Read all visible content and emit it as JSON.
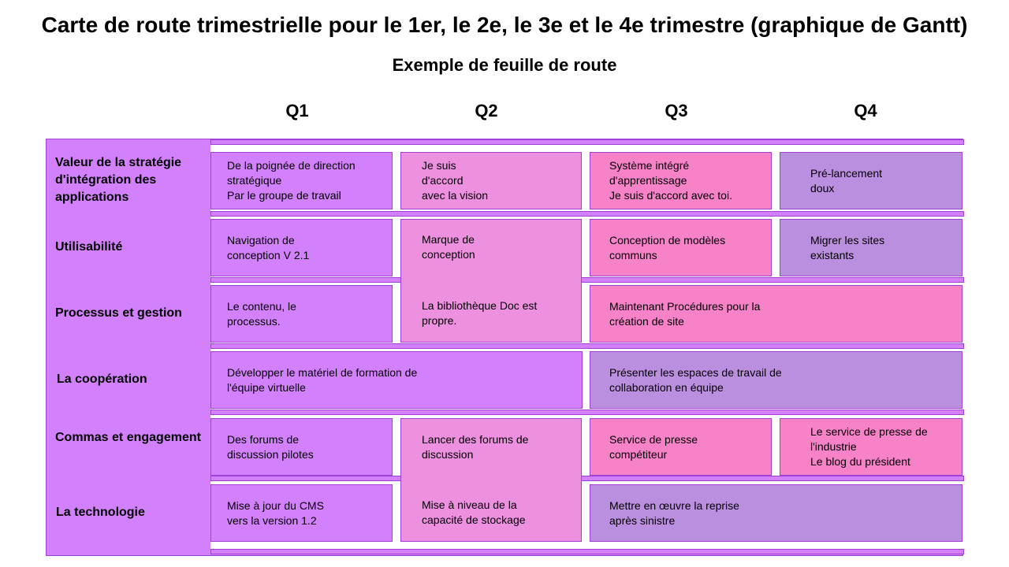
{
  "title": "Carte de route trimestrielle pour le 1er, le 2e, le 3e et le 4e trimestre (graphique de Gantt)",
  "subtitle": "Exemple de feuille de route",
  "colors": {
    "panel": "#d280fb",
    "panel_border": "#a040d8",
    "light_pink": "#ec90df",
    "hot_pink": "#f782c8",
    "lavender": "#bb8fe0"
  },
  "quarters": [
    "Q1",
    "Q2",
    "Q3",
    "Q4"
  ],
  "rows": [
    "Valeur de la stratégie d'intégration des applications",
    "Utilisabilité",
    "Processus et gestion",
    "La coopération",
    "Commas et engagement",
    "La technologie"
  ],
  "tasks": [
    {
      "text": "De la poignée de direction\nstratégique\nPar le groupe de travail",
      "color": "#d280fb"
    },
    {
      "text": "Je suis\nd'accord\navec la vision",
      "color": "#ec90df"
    },
    {
      "text": "Système intégré\nd'apprentissage\n Je suis d'accord avec toi.",
      "color": "#f782c8"
    },
    {
      "text": "Pré-lancement\ndoux",
      "color": "#bb8fe0"
    },
    {
      "text": "Navigation de\nconception V 2.1",
      "color": "#d280fb"
    },
    {
      "text": "Marque de\nconception",
      "color": "#ec90df"
    },
    {
      "text": "Conception de modèles\ncommuns",
      "color": "#f782c8"
    },
    {
      "text": "Migrer les sites\nexistants",
      "color": "#bb8fe0"
    },
    {
      "text": "Le contenu, le\nprocessus.",
      "color": "#d280fb"
    },
    {
      "text": "La bibliothèque Doc est\npropre.",
      "color": "#ec90df"
    },
    {
      "text": "Maintenant Procédures pour la\ncréation de site",
      "color": "#f782c8"
    },
    {
      "text": "Développer le matériel de formation de\nl'équipe virtuelle",
      "color": "#d280fb"
    },
    {
      "text": "Présenter les espaces de travail de\ncollaboration en équipe",
      "color": "#bb8fe0"
    },
    {
      "text": "Des forums de\ndiscussion pilotes",
      "color": "#d280fb"
    },
    {
      "text": "Lancer des forums de\ndiscussion",
      "color": "#ec90df"
    },
    {
      "text": "Service de presse\ncompétiteur",
      "color": "#f782c8"
    },
    {
      "text": "Le service de presse de\nl'industrie\nLe blog du président",
      "color": "#f782c8"
    },
    {
      "text": "Mise à jour du CMS\nvers la version 1.2",
      "color": "#d280fb"
    },
    {
      "text": "Mise à niveau de la\ncapacité de stockage",
      "color": "#ec90df"
    },
    {
      "text": "Mettre en œuvre la reprise\naprès sinistre",
      "color": "#bb8fe0"
    }
  ]
}
